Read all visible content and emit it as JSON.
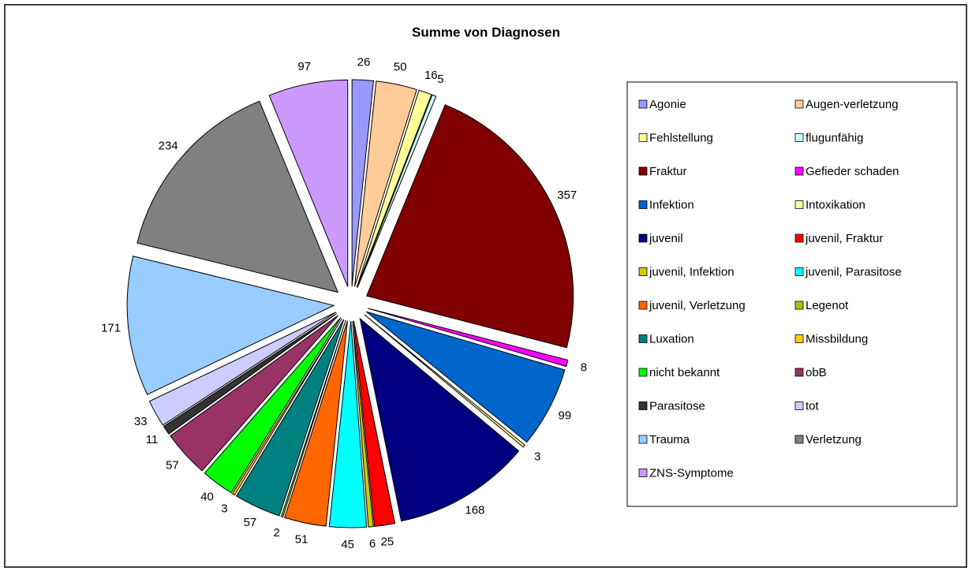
{
  "chart_data": {
    "type": "pie",
    "title": "Summe von Diagnosen",
    "categories": [
      "Agonie",
      "Augen-verletzung",
      "Fehlstellung",
      "flugunfähig",
      "Fraktur",
      "Gefieder schaden",
      "Infektion",
      "Intoxikation",
      "juvenil",
      "juvenil, Fraktur",
      "juvenil, Infektion",
      "juvenil, Parasitose",
      "juvenil, Verletzung",
      "Legenot",
      "Luxation",
      "Missbildung",
      "nicht bekannt",
      "obB",
      "Parasitose",
      "tot",
      "Trauma",
      "Verletzung",
      "ZNS-Symptome"
    ],
    "values": [
      26,
      50,
      16,
      5,
      357,
      8,
      99,
      3,
      168,
      25,
      6,
      45,
      51,
      2,
      57,
      3,
      40,
      57,
      11,
      33,
      171,
      234,
      97
    ],
    "colors": [
      "#9999ff",
      "#ffcc99",
      "#ffff99",
      "#ccffff",
      "#800000",
      "#ff00ff",
      "#0066cc",
      "#ffff99",
      "#000080",
      "#ff0000",
      "#cccc00",
      "#00ffff",
      "#ff6600",
      "#99cc00",
      "#008080",
      "#ffcc00",
      "#00ff00",
      "#993366",
      "#333333",
      "#ccccff",
      "#99ccff",
      "#808080",
      "#cc99ff"
    ],
    "legend": "right"
  }
}
